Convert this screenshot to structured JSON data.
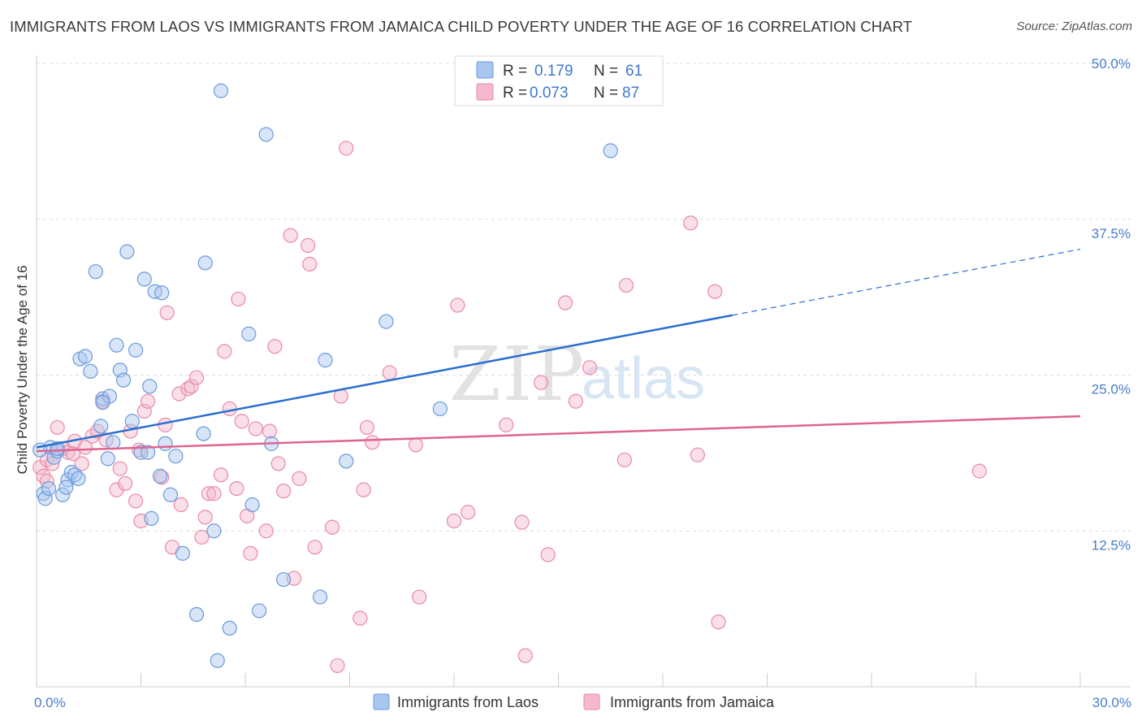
{
  "title": "IMMIGRANTS FROM LAOS VS IMMIGRANTS FROM JAMAICA CHILD POVERTY UNDER THE AGE OF 16 CORRELATION CHART",
  "source": "Source: ZipAtlas.com",
  "watermark": {
    "zip": "ZIP",
    "atlas": "atlas"
  },
  "colors": {
    "laos_fill": "#a9c6ef",
    "laos_stroke": "#6a9ad8",
    "laos_line": "#2a6fd0",
    "jamaica_fill": "#f5b9cb",
    "jamaica_stroke": "#e88aa7",
    "jamaica_line": "#e0648e",
    "grid": "#dcdcdc",
    "tick_text": "#4a7cc9"
  },
  "legend": {
    "rows": [
      {
        "r_label": "R =",
        "r_value": "0.179",
        "n_label": "N =",
        "n_value": "61"
      },
      {
        "r_label": "R =",
        "r_value": "0.073",
        "n_label": "N =",
        "n_value": "87"
      }
    ]
  },
  "bottom_legend": [
    "Immigrants from Laos",
    "Immigrants from Jamaica"
  ],
  "chart_data": {
    "type": "scatter",
    "title": "IMMIGRANTS FROM LAOS VS IMMIGRANTS FROM JAMAICA CHILD POVERTY UNDER THE AGE OF 16 CORRELATION CHART",
    "xlabel": "",
    "ylabel": "Child Poverty Under the Age of 16",
    "xlim": [
      0,
      30
    ],
    "ylim": [
      0,
      50
    ],
    "x_tick_labels": [
      "0.0%",
      "30.0%"
    ],
    "y_ticks": [
      12.5,
      25.0,
      37.5,
      50.0
    ],
    "y_tick_labels": [
      "12.5%",
      "25.0%",
      "37.5%",
      "50.0%"
    ],
    "grid": true,
    "legend_position": "top-center",
    "series": [
      {
        "name": "Immigrants from Laos",
        "R": 0.179,
        "N": 61,
        "trend": {
          "x0": 0,
          "y0": 19.2,
          "x1": 20,
          "y1": 29.8,
          "dashed_to_x": 30,
          "dashed_to_y": 35.1
        },
        "points": [
          [
            0.2,
            15.5
          ],
          [
            0.25,
            15.1
          ],
          [
            0.35,
            15.9
          ],
          [
            0.4,
            19.2
          ],
          [
            0.5,
            18.4
          ],
          [
            0.6,
            18.9
          ],
          [
            0.75,
            15.4
          ],
          [
            0.9,
            16.6
          ],
          [
            1.0,
            17.2
          ],
          [
            0.85,
            16.0
          ],
          [
            1.1,
            17.0
          ],
          [
            1.2,
            16.7
          ],
          [
            1.25,
            26.3
          ],
          [
            1.4,
            26.5
          ],
          [
            1.55,
            25.3
          ],
          [
            1.7,
            33.3
          ],
          [
            1.85,
            20.9
          ],
          [
            1.9,
            23.1
          ],
          [
            2.05,
            18.3
          ],
          [
            2.1,
            23.3
          ],
          [
            2.2,
            19.6
          ],
          [
            2.3,
            27.4
          ],
          [
            2.4,
            25.4
          ],
          [
            2.5,
            24.6
          ],
          [
            2.6,
            34.9
          ],
          [
            2.75,
            21.3
          ],
          [
            2.85,
            27.0
          ],
          [
            3.0,
            18.8
          ],
          [
            3.1,
            32.7
          ],
          [
            3.2,
            18.8
          ],
          [
            3.25,
            24.1
          ],
          [
            3.3,
            13.5
          ],
          [
            3.4,
            31.7
          ],
          [
            3.55,
            16.9
          ],
          [
            3.6,
            31.6
          ],
          [
            3.7,
            19.5
          ],
          [
            3.85,
            15.4
          ],
          [
            4.0,
            18.5
          ],
          [
            4.2,
            10.7
          ],
          [
            4.6,
            5.8
          ],
          [
            4.8,
            20.3
          ],
          [
            4.85,
            34.0
          ],
          [
            5.1,
            12.5
          ],
          [
            5.2,
            2.1
          ],
          [
            5.3,
            47.8
          ],
          [
            5.55,
            4.7
          ],
          [
            6.1,
            28.3
          ],
          [
            6.2,
            14.6
          ],
          [
            6.4,
            6.1
          ],
          [
            6.6,
            44.3
          ],
          [
            6.75,
            19.5
          ],
          [
            7.1,
            8.6
          ],
          [
            8.15,
            7.2
          ],
          [
            8.3,
            26.2
          ],
          [
            8.9,
            18.1
          ],
          [
            10.05,
            29.3
          ],
          [
            11.6,
            22.3
          ],
          [
            16.5,
            43.0
          ],
          [
            0.1,
            19.0
          ],
          [
            0.6,
            19.1
          ],
          [
            1.9,
            22.8
          ]
        ]
      },
      {
        "name": "Immigrants from Jamaica",
        "R": 0.073,
        "N": 87,
        "trend": {
          "x0": 0,
          "y0": 18.9,
          "x1": 30,
          "y1": 21.7
        },
        "points": [
          [
            0.1,
            17.6
          ],
          [
            0.2,
            16.9
          ],
          [
            0.3,
            18.2
          ],
          [
            0.45,
            17.9
          ],
          [
            0.6,
            20.8
          ],
          [
            0.75,
            19.1
          ],
          [
            0.9,
            18.8
          ],
          [
            1.05,
            18.7
          ],
          [
            1.1,
            19.7
          ],
          [
            1.3,
            17.9
          ],
          [
            1.4,
            19.2
          ],
          [
            1.6,
            20.1
          ],
          [
            1.75,
            20.5
          ],
          [
            1.9,
            22.9
          ],
          [
            2.0,
            19.8
          ],
          [
            2.3,
            15.8
          ],
          [
            2.4,
            17.5
          ],
          [
            2.55,
            16.3
          ],
          [
            2.7,
            20.5
          ],
          [
            2.85,
            14.9
          ],
          [
            2.95,
            19.0
          ],
          [
            3.0,
            13.3
          ],
          [
            3.1,
            22.1
          ],
          [
            3.2,
            22.9
          ],
          [
            3.6,
            16.8
          ],
          [
            3.7,
            21.0
          ],
          [
            3.75,
            30.0
          ],
          [
            3.9,
            11.2
          ],
          [
            4.1,
            23.5
          ],
          [
            4.15,
            14.6
          ],
          [
            4.35,
            23.9
          ],
          [
            4.45,
            24.1
          ],
          [
            4.6,
            24.8
          ],
          [
            4.75,
            12.0
          ],
          [
            4.85,
            13.6
          ],
          [
            4.95,
            15.5
          ],
          [
            5.1,
            15.5
          ],
          [
            5.3,
            17.0
          ],
          [
            5.4,
            26.9
          ],
          [
            5.55,
            22.3
          ],
          [
            5.75,
            15.9
          ],
          [
            5.8,
            31.1
          ],
          [
            5.9,
            21.3
          ],
          [
            6.05,
            13.7
          ],
          [
            6.15,
            10.7
          ],
          [
            6.3,
            20.7
          ],
          [
            6.6,
            12.5
          ],
          [
            6.7,
            20.5
          ],
          [
            6.85,
            27.3
          ],
          [
            6.95,
            17.9
          ],
          [
            7.1,
            15.7
          ],
          [
            7.3,
            36.2
          ],
          [
            7.4,
            8.7
          ],
          [
            7.55,
            16.7
          ],
          [
            7.8,
            35.4
          ],
          [
            7.85,
            33.9
          ],
          [
            8.0,
            11.2
          ],
          [
            8.5,
            12.8
          ],
          [
            8.65,
            1.7
          ],
          [
            8.75,
            23.3
          ],
          [
            8.9,
            43.2
          ],
          [
            9.3,
            5.5
          ],
          [
            9.4,
            15.8
          ],
          [
            9.5,
            20.8
          ],
          [
            9.65,
            19.6
          ],
          [
            10.15,
            25.2
          ],
          [
            10.9,
            19.4
          ],
          [
            11.0,
            7.2
          ],
          [
            12.0,
            13.3
          ],
          [
            12.1,
            30.6
          ],
          [
            12.4,
            14.0
          ],
          [
            13.5,
            21.0
          ],
          [
            13.95,
            13.2
          ],
          [
            14.05,
            2.5
          ],
          [
            14.5,
            24.4
          ],
          [
            14.7,
            10.6
          ],
          [
            15.2,
            30.8
          ],
          [
            15.5,
            22.9
          ],
          [
            15.9,
            25.6
          ],
          [
            16.9,
            18.2
          ],
          [
            16.95,
            32.2
          ],
          [
            18.8,
            37.2
          ],
          [
            19.0,
            18.6
          ],
          [
            19.5,
            31.7
          ],
          [
            19.6,
            5.2
          ],
          [
            27.1,
            17.3
          ],
          [
            0.3,
            16.5
          ]
        ]
      }
    ]
  }
}
